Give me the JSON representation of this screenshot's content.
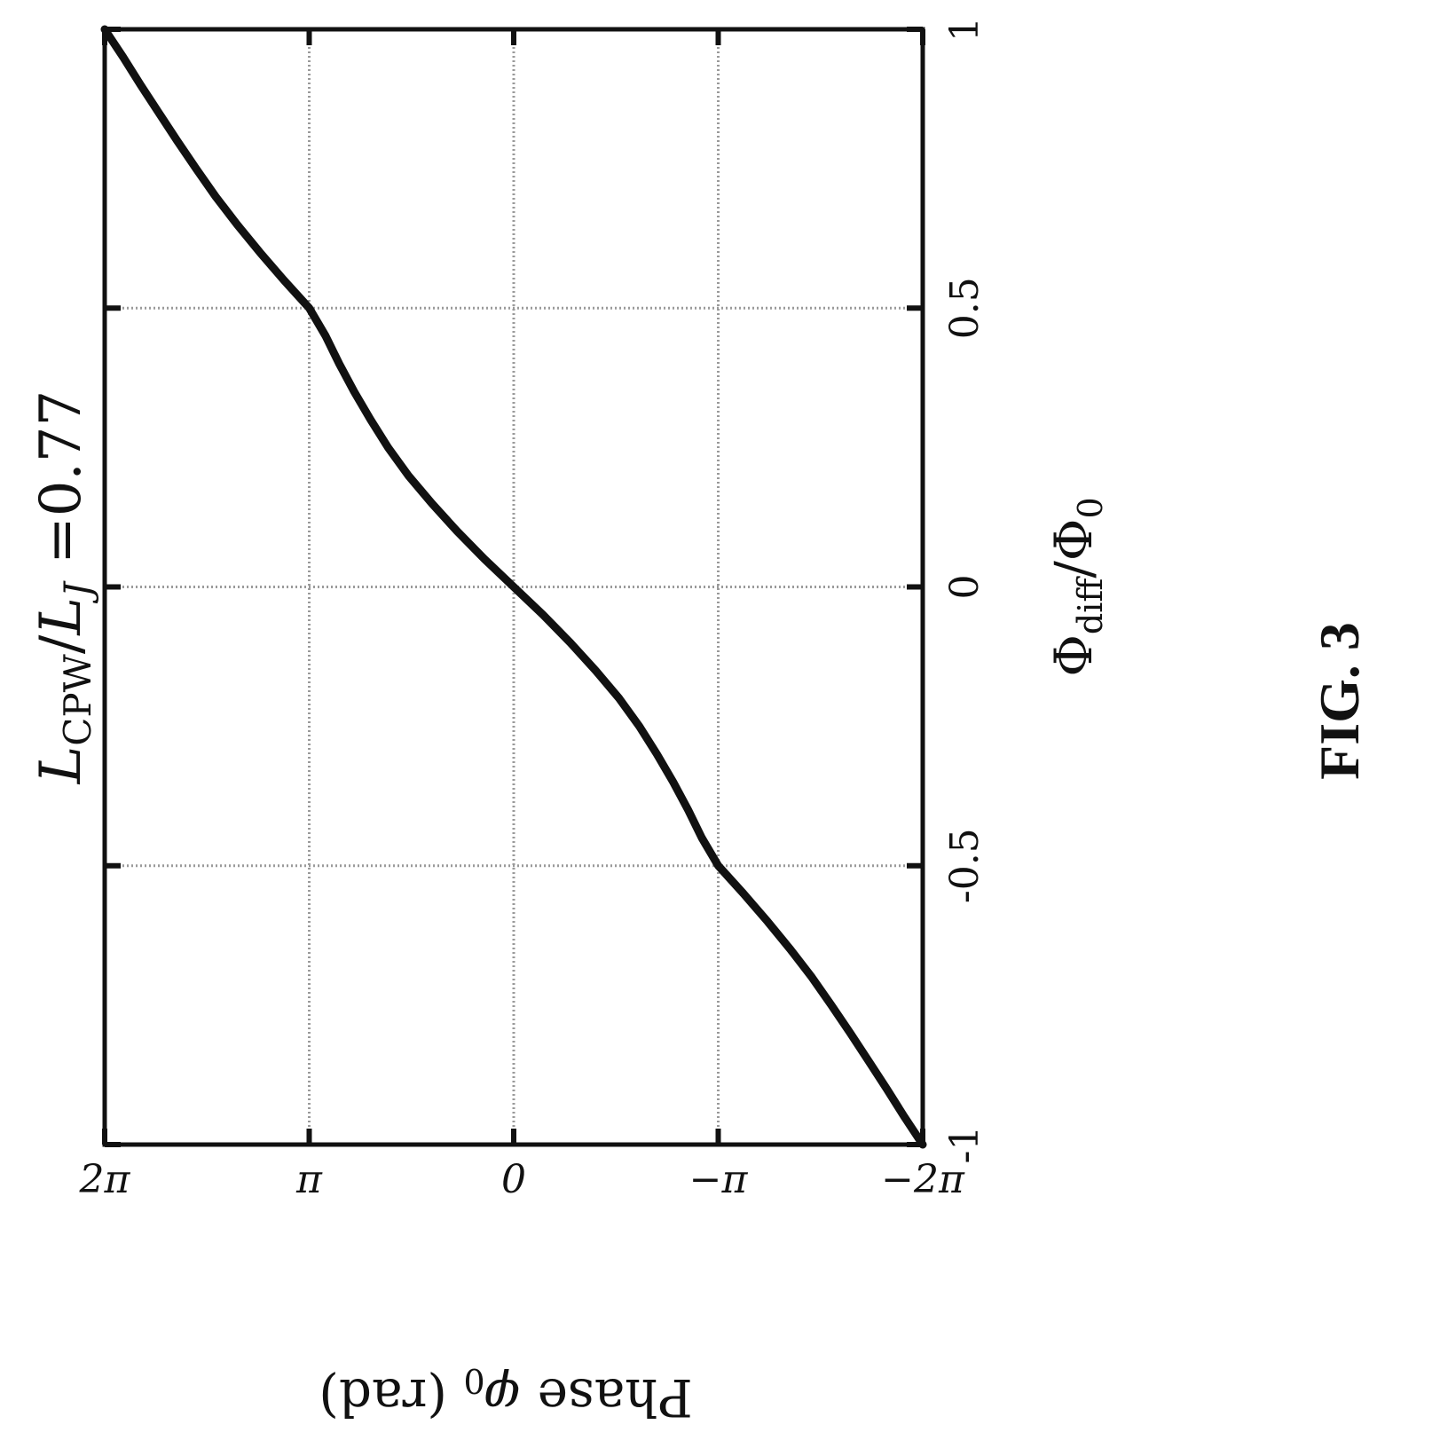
{
  "figure_label": "FIG. 3",
  "chart_data": {
    "type": "line",
    "title_parts": {
      "var1": "L",
      "sub1": "CPW",
      "slash": "/",
      "var2": "L",
      "sub2": "J",
      "suffix": " =0.77"
    },
    "xlabel_parts": {
      "var": "Φ",
      "sub": "diff",
      "slash": "/",
      "var2": "Φ",
      "sub2": "0"
    },
    "ylabel_parts": {
      "pre": "Phase ",
      "var": "φ",
      "sub": "0",
      "post": " (rad)"
    },
    "xlim": [
      -1,
      1
    ],
    "ylim": [
      -6.2832,
      6.2832
    ],
    "x_ticks": [
      -1,
      -0.5,
      0,
      0.5,
      1
    ],
    "x_tick_labels": [
      "-1",
      "-0.5",
      "0",
      "0.5",
      "1"
    ],
    "y_ticks": [
      -6.2832,
      -3.1416,
      0,
      3.1416,
      6.2832
    ],
    "y_tick_labels": [
      "−2π",
      "−π",
      "0",
      "π",
      "2π"
    ],
    "grid": true,
    "series": [
      {
        "color": "#111111",
        "x": [
          -1,
          -0.95,
          -0.9,
          -0.85,
          -0.8,
          -0.75,
          -0.7,
          -0.65,
          -0.6,
          -0.55,
          -0.5,
          -0.45,
          -0.4,
          -0.35,
          -0.3,
          -0.25,
          -0.2,
          -0.15,
          -0.1,
          -0.05,
          0,
          0.05,
          0.1,
          0.15,
          0.2,
          0.25,
          0.3,
          0.35,
          0.4,
          0.45,
          0.5,
          0.55,
          0.6,
          0.65,
          0.7,
          0.75,
          0.8,
          0.85,
          0.9,
          0.95,
          1
        ],
        "y": [
          -6.2832,
          -6.0,
          -5.73,
          -5.45,
          -5.17,
          -4.88,
          -4.58,
          -4.25,
          -3.9,
          -3.53,
          -3.1416,
          -2.89,
          -2.68,
          -2.45,
          -2.2,
          -1.93,
          -1.62,
          -1.26,
          -0.87,
          -0.45,
          0,
          0.45,
          0.87,
          1.26,
          1.62,
          1.93,
          2.2,
          2.45,
          2.68,
          2.89,
          3.1416,
          3.53,
          3.9,
          4.25,
          4.58,
          4.88,
          5.17,
          5.45,
          5.73,
          6.0,
          6.2832
        ]
      }
    ]
  }
}
